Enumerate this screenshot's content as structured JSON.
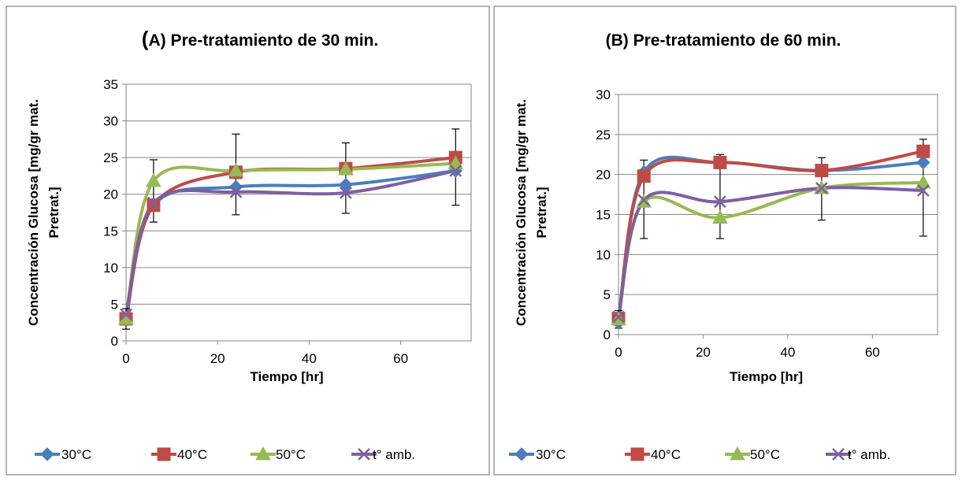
{
  "chart_data": [
    {
      "type": "line",
      "title_prefix": "(",
      "title_rest": "A) Pre-tratamiento de 30 min.",
      "xlabel": "Tiempo [hr]",
      "ylabel_lines": [
        "Concentración Glucosa [mg/gr mat.",
        "Pretrat.]"
      ],
      "xlim": [
        0,
        72
      ],
      "ylim": [
        0,
        35
      ],
      "xticks": [
        0,
        20,
        40,
        60
      ],
      "yticks": [
        0,
        5,
        10,
        15,
        20,
        25,
        30,
        35
      ],
      "grid": "horizontal",
      "legend_position": "bottom",
      "x": [
        0,
        6,
        24,
        48,
        72
      ],
      "series": [
        {
          "name": "30°C",
          "color": "#4a7ebb",
          "marker": "diamond",
          "values": [
            3.0,
            18.5,
            21.0,
            21.3,
            23.2
          ]
        },
        {
          "name": "40°C",
          "color": "#be4b48",
          "marker": "square",
          "values": [
            3.0,
            18.5,
            23.0,
            23.5,
            25.0
          ]
        },
        {
          "name": "50°C",
          "color": "#98b954",
          "marker": "triangle",
          "values": [
            3.0,
            21.8,
            23.2,
            23.4,
            24.2
          ]
        },
        {
          "name": "t° amb.",
          "color": "#7d60a0",
          "marker": "x",
          "values": [
            3.6,
            18.8,
            20.3,
            20.2,
            23.2
          ]
        }
      ],
      "error_bars": [
        {
          "x": 0,
          "low": 1.6,
          "high": 4.4
        },
        {
          "x": 6,
          "low": 16.2,
          "high": 24.7
        },
        {
          "x": 24,
          "low": 17.2,
          "high": 28.2
        },
        {
          "x": 48,
          "low": 17.4,
          "high": 27.0
        },
        {
          "x": 72,
          "low": 18.5,
          "high": 28.9
        }
      ]
    },
    {
      "type": "line",
      "title_prefix": "",
      "title_rest": "(B) Pre-tratamiento de 60 min.",
      "xlabel": "Tiempo [hr]",
      "ylabel_lines": [
        "Concentración Glucosa [mg/gr mat.",
        "Pretrat.]"
      ],
      "xlim": [
        0,
        72
      ],
      "ylim": [
        0,
        30
      ],
      "xticks": [
        0,
        20,
        40,
        60
      ],
      "yticks": [
        0,
        5,
        10,
        15,
        20,
        25,
        30
      ],
      "grid": "horizontal",
      "legend_position": "bottom",
      "x": [
        0,
        6,
        24,
        48,
        72
      ],
      "series": [
        {
          "name": "30°C",
          "color": "#4a7ebb",
          "marker": "diamond",
          "values": [
            1.5,
            20.3,
            21.5,
            20.5,
            21.5
          ]
        },
        {
          "name": "40°C",
          "color": "#be4b48",
          "marker": "square",
          "values": [
            2.0,
            19.8,
            21.5,
            20.5,
            22.9
          ]
        },
        {
          "name": "50°C",
          "color": "#98b954",
          "marker": "triangle",
          "values": [
            1.9,
            16.6,
            14.6,
            18.3,
            19.0
          ]
        },
        {
          "name": "t° amb.",
          "color": "#7d60a0",
          "marker": "x",
          "values": [
            2.2,
            16.8,
            16.6,
            18.3,
            18.0
          ]
        }
      ],
      "error_bars": [
        {
          "x": 0,
          "low": 0.8,
          "high": 3.0
        },
        {
          "x": 6,
          "low": 12.0,
          "high": 21.8
        },
        {
          "x": 24,
          "low": 12.0,
          "high": 22.5
        },
        {
          "x": 48,
          "low": 14.3,
          "high": 22.1
        },
        {
          "x": 72,
          "low": 12.3,
          "high": 24.4
        }
      ]
    }
  ]
}
